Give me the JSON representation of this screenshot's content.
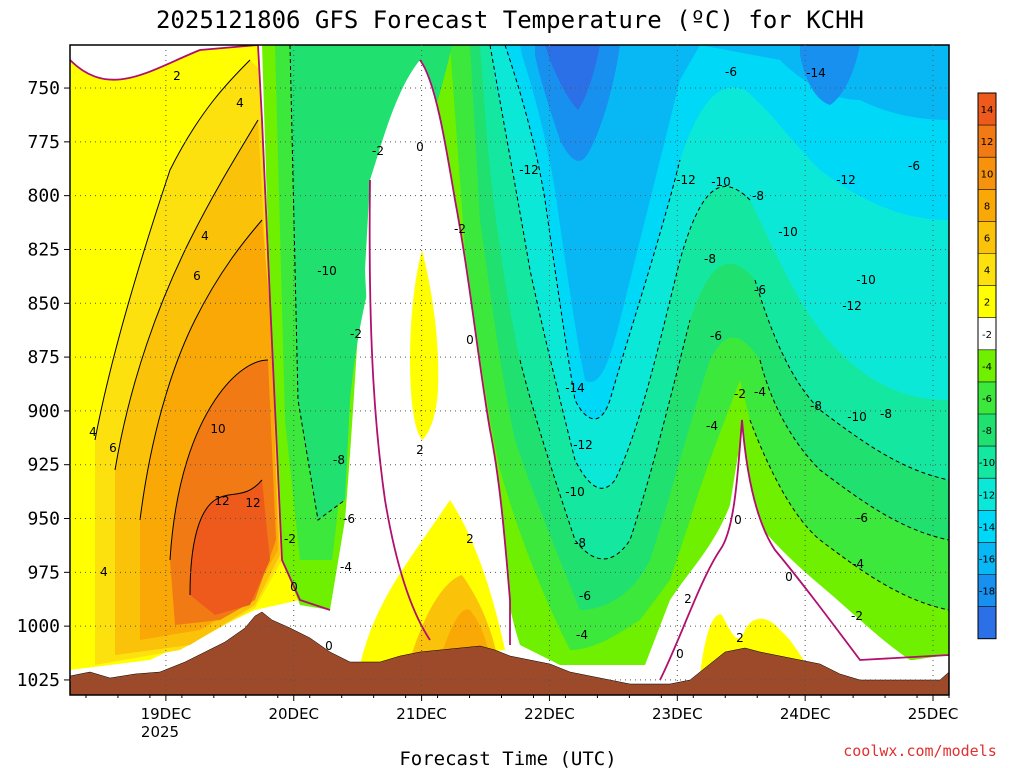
{
  "chart_data": {
    "type": "time-height contour",
    "title": "2025121806 GFS Forecast Temperature (ºC) for KCHH",
    "xlabel": "Forecast Time (UTC)",
    "credit": "coolwx.com/models",
    "y_axis": {
      "ticks": [
        "750",
        "775",
        "800",
        "825",
        "850",
        "875",
        "900",
        "925",
        "950",
        "975",
        "1000",
        "1025"
      ],
      "values": [
        750,
        775,
        800,
        825,
        850,
        875,
        900,
        925,
        950,
        975,
        1000,
        1025
      ],
      "range": [
        730,
        1032
      ],
      "inverted": true
    },
    "x_axis": {
      "ticks": [
        "19DEC",
        "20DEC",
        "21DEC",
        "22DEC",
        "23DEC",
        "24DEC",
        "25DEC"
      ],
      "year_label": "2025",
      "range_hours": [
        -15,
        150
      ]
    },
    "colorbar": {
      "labels": [
        "14",
        "12",
        "10",
        "8",
        "6",
        "4",
        "2",
        "-2",
        "-4",
        "-6",
        "-8",
        "-10",
        "-12",
        "-14",
        "-16",
        "-18"
      ],
      "bins": [
        {
          "color": "#ee5a1c"
        },
        {
          "color": "#f27a14"
        },
        {
          "color": "#f6920c"
        },
        {
          "color": "#f9a806"
        },
        {
          "color": "#fbc20a"
        },
        {
          "color": "#fde10e"
        },
        {
          "color": "#ffff00"
        },
        {
          "color": "#ffffff"
        },
        {
          "color": "#6ff000"
        },
        {
          "color": "#3ce83c"
        },
        {
          "color": "#20e070"
        },
        {
          "color": "#14e8a0"
        },
        {
          "color": "#0ce8d8"
        },
        {
          "color": "#00d8f8"
        },
        {
          "color": "#08b8f4"
        },
        {
          "color": "#1890f0"
        },
        {
          "color": "#2c70e8"
        }
      ]
    },
    "contour_labels": [
      {
        "text": "2"
      },
      {
        "text": "4"
      },
      {
        "text": "4"
      },
      {
        "text": "6"
      },
      {
        "text": "4"
      },
      {
        "text": "6"
      },
      {
        "text": "10"
      },
      {
        "text": "4"
      },
      {
        "text": "12"
      },
      {
        "text": "12"
      },
      {
        "text": "-2"
      },
      {
        "text": "0"
      },
      {
        "text": "0"
      },
      {
        "text": "-2"
      },
      {
        "text": "-10"
      },
      {
        "text": "-2"
      },
      {
        "text": "-8"
      },
      {
        "text": "-6"
      },
      {
        "text": "-4"
      },
      {
        "text": "0"
      },
      {
        "text": "-2"
      },
      {
        "text": "0"
      },
      {
        "text": "2"
      },
      {
        "text": "2"
      },
      {
        "text": "-12"
      },
      {
        "text": "-14"
      },
      {
        "text": "-12"
      },
      {
        "text": "-10"
      },
      {
        "text": "-8"
      },
      {
        "text": "-6"
      },
      {
        "text": "-4"
      },
      {
        "text": "-6"
      },
      {
        "text": "-12"
      },
      {
        "text": "-10"
      },
      {
        "text": "-8"
      },
      {
        "text": "-10"
      },
      {
        "text": "-8"
      },
      {
        "text": "-6"
      },
      {
        "text": "-6"
      },
      {
        "text": "-4"
      },
      {
        "text": "-4"
      },
      {
        "text": "-2"
      },
      {
        "text": "0"
      },
      {
        "text": "2"
      },
      {
        "text": "0"
      },
      {
        "text": "2"
      },
      {
        "text": "0"
      },
      {
        "text": "-14"
      },
      {
        "text": "-12"
      },
      {
        "text": "-10"
      },
      {
        "text": "-12"
      },
      {
        "text": "-8"
      },
      {
        "text": "-10"
      },
      {
        "text": "-8"
      },
      {
        "text": "-6"
      },
      {
        "text": "-6"
      },
      {
        "text": "-4"
      },
      {
        "text": "-2"
      }
    ],
    "terrain_color": "#9c4a2a",
    "freezing_line_color": "#b0106e"
  }
}
